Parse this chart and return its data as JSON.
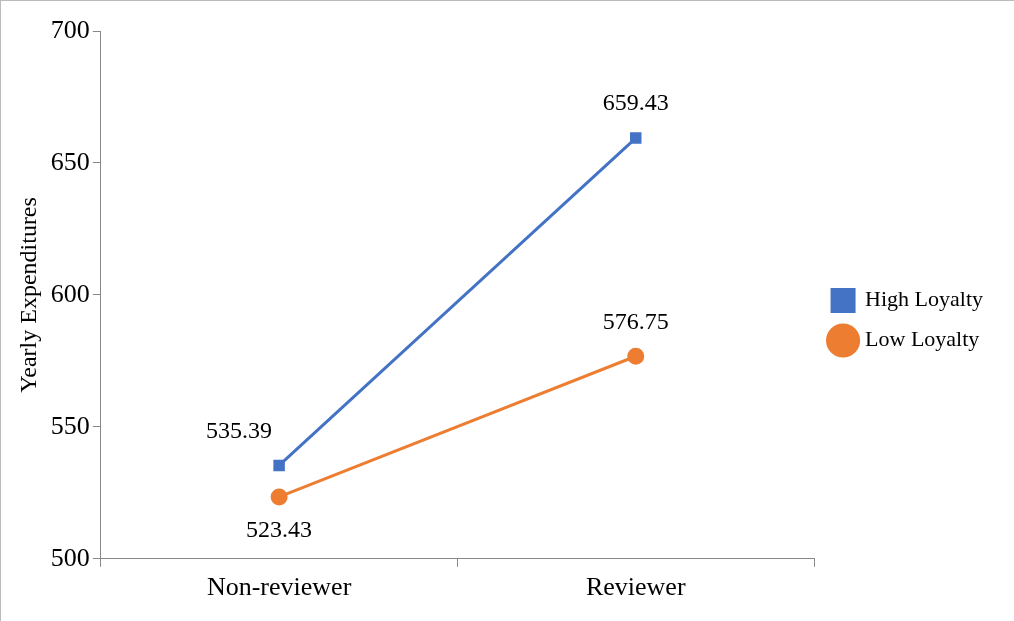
{
  "chart_data": {
    "type": "line",
    "ylabel": "Yearly Expenditures",
    "categories": [
      "Non-reviewer",
      "Reviewer"
    ],
    "series": [
      {
        "name": "High Loyalty",
        "color": "#4472c4",
        "values": [
          535.39,
          659.43
        ],
        "marker": "square"
      },
      {
        "name": "Low Loyalty",
        "color": "#ed7d31",
        "values": [
          523.43,
          576.75
        ],
        "marker": "circle"
      }
    ],
    "ylim": [
      500,
      700
    ],
    "yticks": [
      500,
      550,
      600,
      650,
      700
    ],
    "grid": false,
    "legend": "right",
    "data_labels": true,
    "line_style": "solid"
  }
}
